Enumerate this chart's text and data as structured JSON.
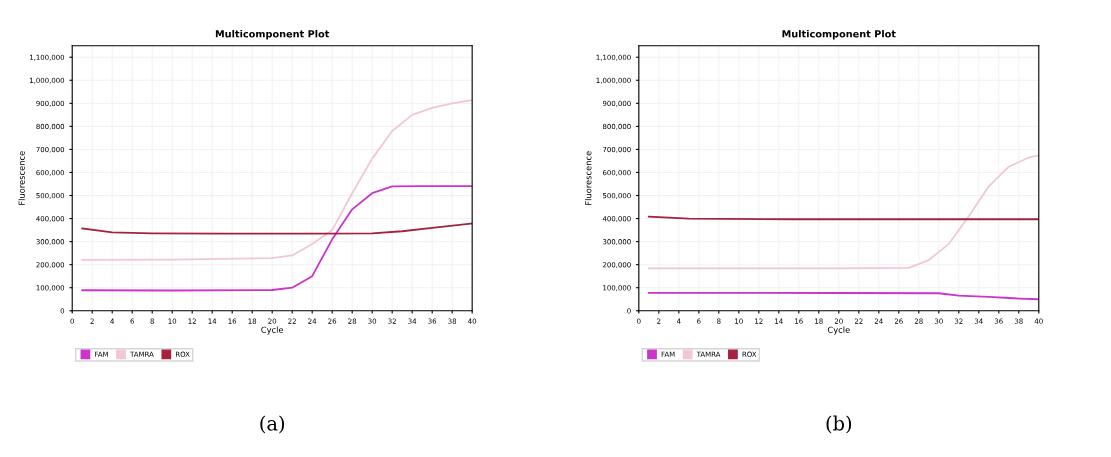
{
  "chart_data": [
    {
      "type": "line",
      "title": "Multicomponent Plot",
      "xlabel": "Cycle",
      "ylabel": "Fluorescence",
      "annotations": [
        "(a)"
      ],
      "xlim": [
        0,
        40
      ],
      "xticks": [
        0,
        2,
        4,
        6,
        8,
        10,
        12,
        14,
        16,
        18,
        20,
        22,
        24,
        26,
        28,
        30,
        32,
        34,
        36,
        38,
        40
      ],
      "ylim": [
        0,
        1150000
      ],
      "yticks": [
        0,
        {
          "value": 100000,
          "label": "100,000"
        },
        {
          "value": 200000,
          "label": "200,000"
        },
        {
          "value": 300000,
          "label": "300,000"
        },
        {
          "value": 400000,
          "label": "400,000"
        },
        {
          "value": 500000,
          "label": "500,000"
        },
        {
          "value": 600000,
          "label": "600,000"
        },
        {
          "value": 700000,
          "label": "700,000"
        },
        {
          "value": 800000,
          "label": "800,000"
        },
        {
          "value": 900000,
          "label": "900,000"
        },
        {
          "value": 1000000,
          "label": "1,000,000"
        },
        {
          "value": 1100000,
          "label": "1,100,000"
        }
      ],
      "grid": true,
      "legend": "bottom",
      "marker": "none",
      "line_style": "solid",
      "series": [
        {
          "name": "FAM",
          "color": "#cc33cc",
          "x": [
            1,
            10,
            20,
            22,
            24,
            26,
            28,
            30,
            32,
            35,
            40
          ],
          "values": [
            89000,
            88000,
            90000,
            100000,
            150000,
            310000,
            440000,
            510000,
            540000,
            541000,
            541000
          ]
        },
        {
          "name": "TAMRA",
          "color": "#f2c6d6",
          "x": [
            1,
            10,
            20,
            22,
            24,
            26,
            28,
            30,
            32,
            34,
            36,
            38,
            40
          ],
          "values": [
            221000,
            222000,
            228000,
            240000,
            290000,
            350000,
            510000,
            660000,
            780000,
            850000,
            880000,
            900000,
            914000
          ]
        },
        {
          "name": "ROX",
          "color": "#a8203f",
          "x": [
            1,
            4,
            8,
            15,
            25,
            30,
            33,
            36,
            40
          ],
          "values": [
            357000,
            340000,
            336000,
            335000,
            335000,
            336000,
            345000,
            360000,
            379000
          ]
        }
      ]
    },
    {
      "type": "line",
      "title": "Multicomponent Plot",
      "xlabel": "Cycle",
      "ylabel": "Fluorescence",
      "annotations": [
        "(b)"
      ],
      "xlim": [
        0,
        40
      ],
      "xticks": [
        0,
        2,
        4,
        6,
        8,
        10,
        12,
        14,
        16,
        18,
        20,
        22,
        24,
        26,
        28,
        30,
        32,
        34,
        36,
        38,
        40
      ],
      "ylim": [
        0,
        1150000
      ],
      "yticks": [
        0,
        {
          "value": 100000,
          "label": "100,000"
        },
        {
          "value": 200000,
          "label": "200,000"
        },
        {
          "value": 300000,
          "label": "300,000"
        },
        {
          "value": 400000,
          "label": "400,000"
        },
        {
          "value": 500000,
          "label": "500,000"
        },
        {
          "value": 600000,
          "label": "600,000"
        },
        {
          "value": 700000,
          "label": "700,000"
        },
        {
          "value": 800000,
          "label": "800,000"
        },
        {
          "value": 900000,
          "label": "900,000"
        },
        {
          "value": 1000000,
          "label": "1,000,000"
        },
        {
          "value": 1100000,
          "label": "1,100,000"
        }
      ],
      "grid": true,
      "legend": "bottom",
      "marker": "none",
      "line_style": "solid",
      "series": [
        {
          "name": "FAM",
          "color": "#cc33cc",
          "x": [
            1,
            10,
            20,
            30,
            32,
            35,
            38,
            40
          ],
          "values": [
            78000,
            78000,
            77000,
            76000,
            66000,
            60000,
            53000,
            50000
          ]
        },
        {
          "name": "TAMRA",
          "color": "#f2c6d6",
          "x": [
            1,
            10,
            20,
            27,
            29,
            31,
            33,
            35,
            37,
            39,
            40
          ],
          "values": [
            184000,
            184000,
            184000,
            186000,
            220000,
            290000,
            410000,
            540000,
            625000,
            665000,
            674000
          ]
        },
        {
          "name": "ROX",
          "color": "#a8203f",
          "x": [
            1,
            5,
            15,
            25,
            35,
            40
          ],
          "values": [
            408000,
            400000,
            397000,
            397000,
            397000,
            397000
          ]
        }
      ]
    }
  ]
}
